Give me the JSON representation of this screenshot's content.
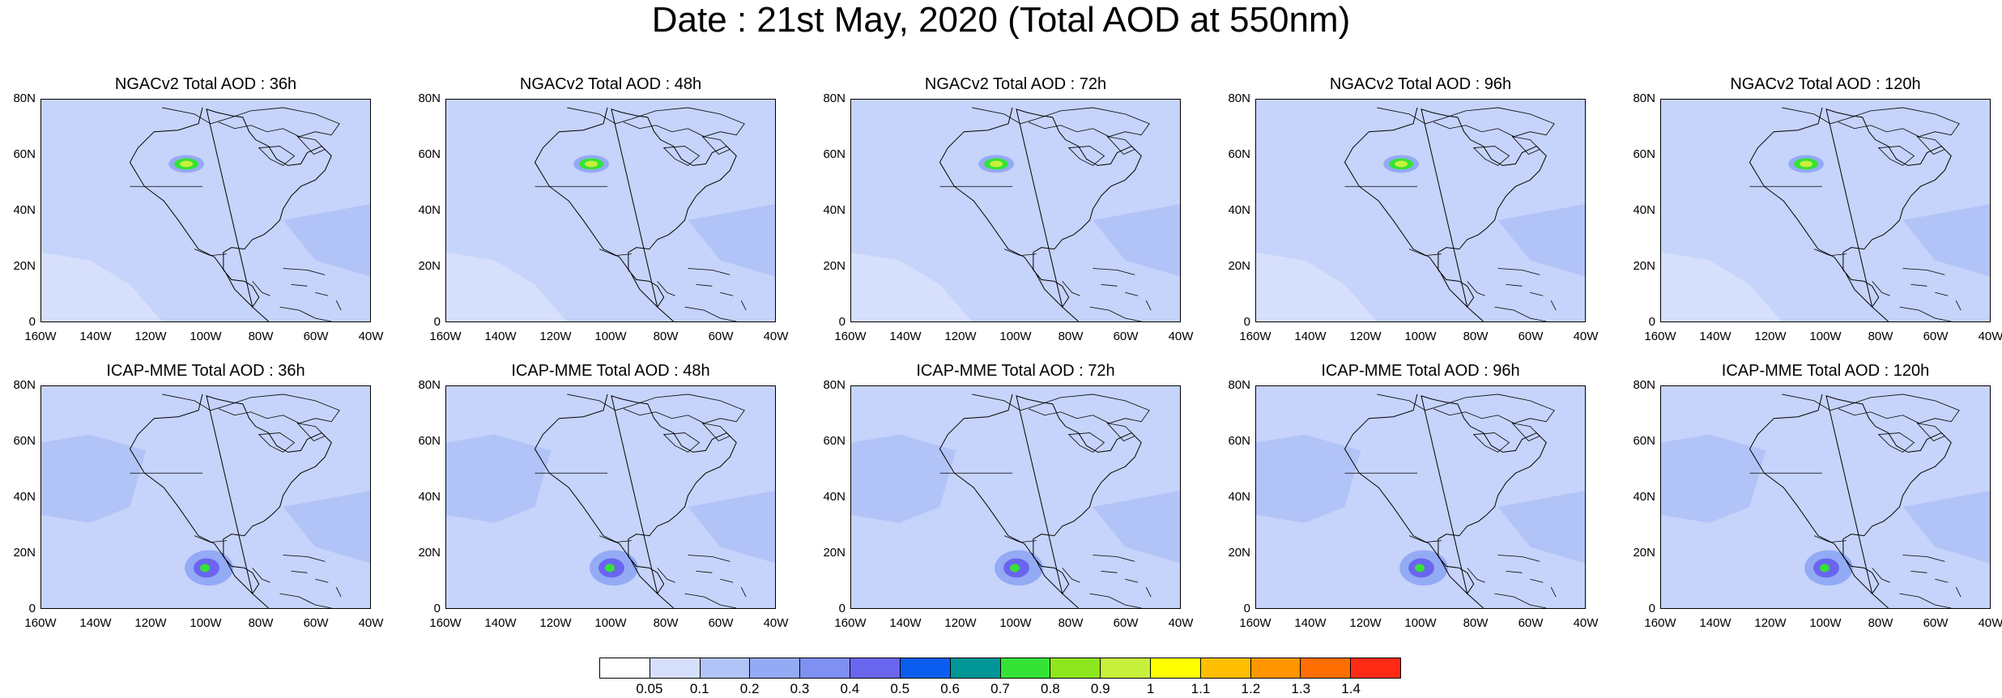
{
  "figure": {
    "title": "Date : 21st May, 2020 (Total AOD at 550nm)"
  },
  "axes": {
    "lat_ticks": [
      "80N",
      "60N",
      "40N",
      "20N",
      "0"
    ],
    "lon_ticks": [
      "160W",
      "140W",
      "120W",
      "100W",
      "80W",
      "60W",
      "40W"
    ]
  },
  "panels": [
    {
      "title": "NGACv2 Total AOD : 36h",
      "model": "NGACv2",
      "lead": "36h",
      "plume": "canada"
    },
    {
      "title": "NGACv2 Total AOD : 48h",
      "model": "NGACv2",
      "lead": "48h",
      "plume": "canada"
    },
    {
      "title": "NGACv2 Total AOD : 72h",
      "model": "NGACv2",
      "lead": "72h",
      "plume": "canada"
    },
    {
      "title": "NGACv2 Total AOD : 96h",
      "model": "NGACv2",
      "lead": "96h",
      "plume": "canada"
    },
    {
      "title": "NGACv2 Total AOD : 120h",
      "model": "NGACv2",
      "lead": "120h",
      "plume": "canada"
    },
    {
      "title": "ICAP-MME Total AOD : 36h",
      "model": "ICAP-MME",
      "lead": "36h",
      "plume": "mexico"
    },
    {
      "title": "ICAP-MME Total AOD : 48h",
      "model": "ICAP-MME",
      "lead": "48h",
      "plume": "mexico"
    },
    {
      "title": "ICAP-MME Total AOD : 72h",
      "model": "ICAP-MME",
      "lead": "72h",
      "plume": "mexico"
    },
    {
      "title": "ICAP-MME Total AOD : 96h",
      "model": "ICAP-MME",
      "lead": "96h",
      "plume": "mexico"
    },
    {
      "title": "ICAP-MME Total AOD : 120h",
      "model": "ICAP-MME",
      "lead": "120h",
      "plume": "mexico"
    }
  ],
  "colorbar": {
    "labels": [
      "0.05",
      "0.1",
      "0.2",
      "0.3",
      "0.4",
      "0.5",
      "0.6",
      "0.7",
      "0.8",
      "0.9",
      "1",
      "1.1",
      "1.2",
      "1.3",
      "1.4"
    ],
    "colors": [
      "#ffffff",
      "#d6dffc",
      "#b2c3f8",
      "#93aaf5",
      "#7f8ff2",
      "#6a65ee",
      "#0b5cf0",
      "#009696",
      "#35e336",
      "#8ee61e",
      "#c6f03c",
      "#ffff00",
      "#ffbe00",
      "#ff9600",
      "#ff6e00",
      "#ff2b14"
    ]
  }
}
